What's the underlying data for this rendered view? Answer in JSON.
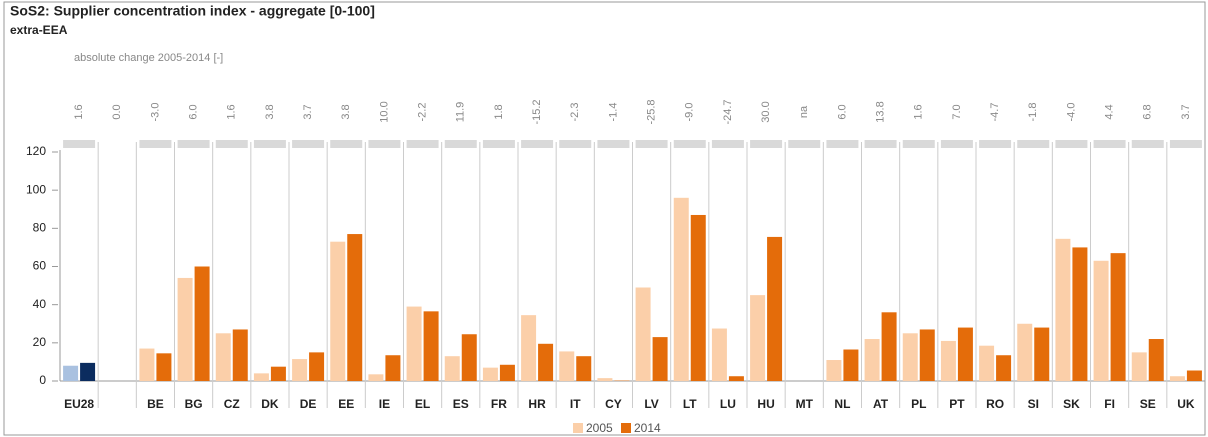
{
  "chart_data": {
    "type": "bar",
    "title": "SoS2: Supplier concentration index - aggregate [0-100]",
    "subtitle": "extra-EEA",
    "annotation": "absolute change 2005-2014 [-]",
    "categories": [
      "EU28",
      null,
      "BE",
      "BG",
      "CZ",
      "DK",
      "DE",
      "EE",
      "IE",
      "EL",
      "ES",
      "FR",
      "HR",
      "IT",
      "CY",
      "LV",
      "LT",
      "LU",
      "HU",
      "MT",
      "NL",
      "AT",
      "PL",
      "PT",
      "RO",
      "SI",
      "SK",
      "FI",
      "SE",
      "UK"
    ],
    "change_labels": [
      "1.6",
      "0.0",
      "-3.0",
      "6.0",
      "1.6",
      "3.8",
      "3.7",
      "3.8",
      "10.0",
      "-2.2",
      "11.9",
      "1.8",
      "-15.2",
      "-2.3",
      "-1.4",
      "-25.8",
      "-9.0",
      "-24.7",
      "30.0",
      "na",
      "6.0",
      "13.8",
      "1.6",
      "7.0",
      "-4.7",
      "-1.8",
      "-4.0",
      "4.4",
      "6.8",
      "3.7"
    ],
    "series": [
      {
        "name": "2005",
        "color": "#fbcfa9",
        "highlight_color": "#a9c1e0",
        "values": [
          8,
          null,
          17,
          54,
          25,
          4,
          11.5,
          73,
          3.5,
          39,
          13,
          7,
          34.5,
          15.5,
          1.5,
          49,
          96,
          27.5,
          45,
          null,
          11,
          22,
          25,
          21,
          18.5,
          30,
          74.5,
          63,
          15,
          2.5
        ]
      },
      {
        "name": "2014",
        "color": "#e46c0a",
        "highlight_color": "#0b2c5f",
        "values": [
          9.5,
          null,
          14.5,
          60,
          27,
          7.5,
          15,
          77,
          13.5,
          36.5,
          24.5,
          8.5,
          19.5,
          13,
          0.2,
          23,
          87,
          2.5,
          75.5,
          null,
          16.5,
          36,
          27,
          28,
          13.5,
          28,
          70,
          67,
          22,
          5.5
        ]
      }
    ],
    "highlight_index": 0,
    "ylim": [
      0,
      120
    ],
    "yticks": [
      0,
      20,
      40,
      60,
      80,
      100,
      120
    ],
    "grid": false,
    "legend": "bottom"
  }
}
